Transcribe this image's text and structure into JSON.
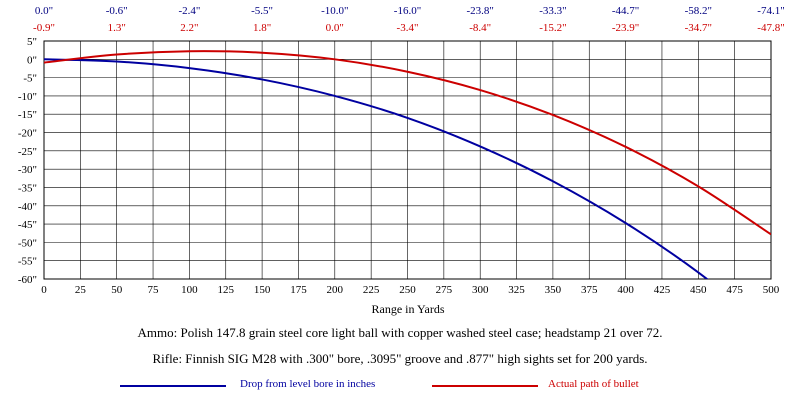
{
  "chart_data": {
    "type": "line",
    "xlabel": "Range in Yards",
    "xlim": [
      0,
      500
    ],
    "ylim": [
      -60,
      5
    ],
    "grid": true,
    "x_ticks": [
      "0",
      "25",
      "50",
      "75",
      "100",
      "125",
      "150",
      "175",
      "200",
      "225",
      "250",
      "275",
      "300",
      "325",
      "350",
      "375",
      "400",
      "425",
      "450",
      "475",
      "500"
    ],
    "y_ticks": [
      "5\"",
      "0\"",
      "-5\"",
      "-10\"",
      "-15\"",
      "-20\"",
      "-25\"",
      "-30\"",
      "-35\"",
      "-40\"",
      "-45\"",
      "-50\"",
      "-55\"",
      "-60\""
    ],
    "top_x": [
      0,
      50,
      100,
      150,
      200,
      250,
      300,
      350,
      400,
      450,
      500
    ],
    "top_drop_labels": [
      "0.0\"",
      "-0.6\"",
      "-2.4\"",
      "-5.5\"",
      "-10.0\"",
      "-16.0\"",
      "-23.8\"",
      "-33.3\"",
      "-44.7\"",
      "-58.2\"",
      "-74.1\""
    ],
    "top_path_labels": [
      "-0.9\"",
      "1.3\"",
      "2.2\"",
      "1.8\"",
      "0.0\"",
      "-3.4\"",
      "-8.4\"",
      "-15.2\"",
      "-23.9\"",
      "-34.7\"",
      "-47.8\""
    ],
    "series": [
      {
        "name": "Drop from level bore in inches",
        "color": "#0000a0",
        "x": [
          0,
          50,
          100,
          150,
          200,
          250,
          300,
          350,
          400,
          450,
          500
        ],
        "y": [
          0.0,
          -0.6,
          -2.4,
          -5.5,
          -10.0,
          -16.0,
          -23.8,
          -33.3,
          -44.7,
          -58.2,
          -74.1
        ]
      },
      {
        "name": "Actual path of bullet",
        "color": "#cc0000",
        "x": [
          0,
          50,
          100,
          150,
          200,
          250,
          300,
          350,
          400,
          450,
          500
        ],
        "y": [
          -0.9,
          1.3,
          2.2,
          1.8,
          0.0,
          -3.4,
          -8.4,
          -15.2,
          -23.9,
          -34.7,
          -47.8
        ]
      }
    ]
  },
  "notes": {
    "ammo": "Ammo:  Polish 147.8 grain steel core light ball with copper washed steel case; headstamp 21 over 72.",
    "rifle": "Rifle:  Finnish SIG M28 with .300\" bore, .3095\" groove and .877\" high sights set for 200 yards."
  },
  "legend": {
    "drop_label": "Drop from level bore in inches",
    "path_label": "Actual path of bullet",
    "drop_color": "#0000a0",
    "path_color": "#cc0000"
  }
}
